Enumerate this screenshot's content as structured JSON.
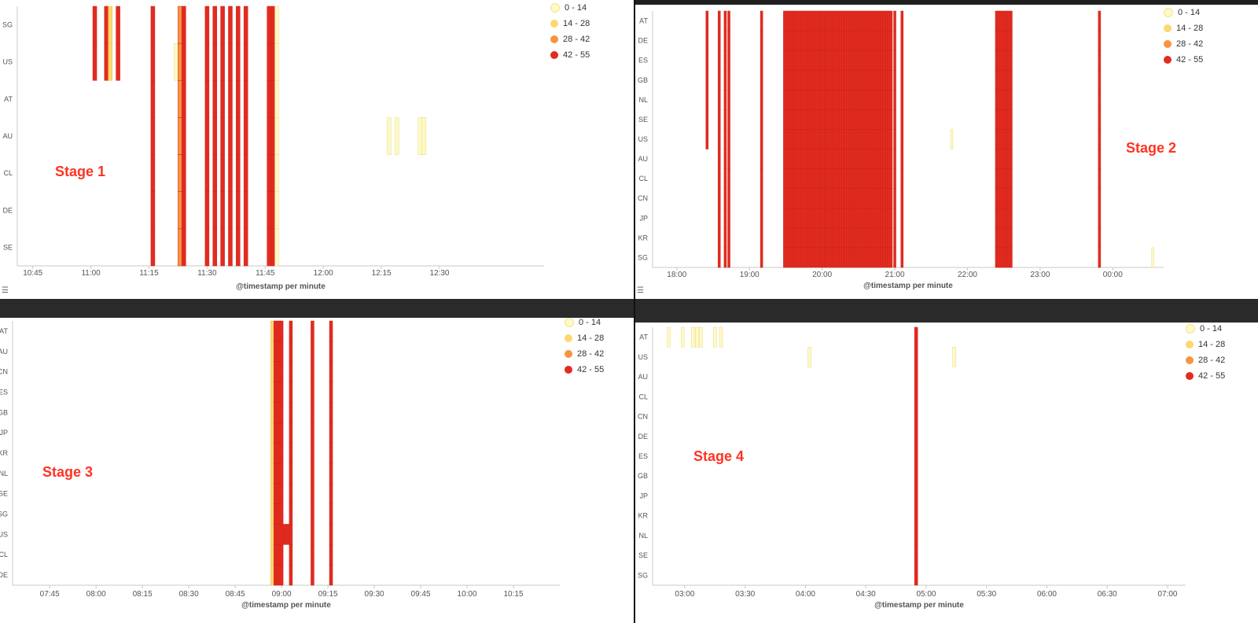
{
  "legend": {
    "entries": [
      {
        "label": "0 - 14",
        "color": "#fff9c4"
      },
      {
        "label": "14 - 28",
        "color": "#fdd870"
      },
      {
        "label": "28 - 42",
        "color": "#f79441"
      },
      {
        "label": "42 - 55",
        "color": "#e32b1f"
      }
    ]
  },
  "chart_data": [
    {
      "type": "heatmap",
      "stage_label": "Stage 1",
      "xlabel": "@timestamp per minute",
      "x_ticks": [
        "10:45",
        "11:00",
        "11:15",
        "11:30",
        "11:45",
        "12:00",
        "12:15",
        "12:30"
      ],
      "x_range": [
        "10:41",
        "12:57"
      ],
      "categories": [
        "SG",
        "US",
        "AT",
        "AU",
        "CL",
        "DE",
        "SE"
      ],
      "columns": [
        {
          "time": "11:01",
          "rows": [
            "SG",
            "US"
          ],
          "bin": "42 - 55"
        },
        {
          "time": "11:04",
          "rows": [
            "SG",
            "US"
          ],
          "bin": "42 - 55"
        },
        {
          "time": "11:05",
          "rows": [
            "SG",
            "US"
          ],
          "bin": "14 - 28"
        },
        {
          "time": "11:07",
          "rows": [
            "SG",
            "US"
          ],
          "bin": "42 - 55"
        },
        {
          "time": "11:16",
          "rows": [
            "SG",
            "US",
            "AT",
            "AU",
            "CL",
            "DE",
            "SE"
          ],
          "bin": "42 - 55"
        },
        {
          "time": "11:22",
          "rows": [
            "US"
          ],
          "bin": "0 - 14"
        },
        {
          "time": "11:23",
          "rows": [
            "SG",
            "US",
            "AT",
            "AU",
            "CL",
            "DE",
            "SE"
          ],
          "bin": "28 - 42"
        },
        {
          "time": "11:24",
          "rows": [
            "SG",
            "US",
            "AT",
            "AU",
            "CL",
            "DE",
            "SE"
          ],
          "bin": "42 - 55"
        },
        {
          "time": "11:30",
          "rows": [
            "SG",
            "US",
            "AT",
            "AU",
            "CL",
            "DE",
            "SE"
          ],
          "bin": "42 - 55"
        },
        {
          "time": "11:32",
          "rows": [
            "SG",
            "US",
            "AT",
            "AU",
            "CL",
            "DE",
            "SE"
          ],
          "bin": "42 - 55"
        },
        {
          "time": "11:34",
          "rows": [
            "SG",
            "US",
            "AT",
            "AU",
            "CL",
            "DE",
            "SE"
          ],
          "bin": "42 - 55"
        },
        {
          "time": "11:36",
          "rows": [
            "SG",
            "US",
            "AT",
            "AU",
            "CL",
            "DE",
            "SE"
          ],
          "bin": "42 - 55"
        },
        {
          "time": "11:38",
          "rows": [
            "SG",
            "US",
            "AT",
            "AU",
            "CL",
            "DE",
            "SE"
          ],
          "bin": "42 - 55"
        },
        {
          "time": "11:40",
          "rows": [
            "SG",
            "US",
            "AT",
            "AU",
            "CL",
            "DE",
            "SE"
          ],
          "bin": "42 - 55"
        },
        {
          "time": "11:46",
          "rows": [
            "SG",
            "US",
            "AT",
            "AU",
            "CL",
            "DE",
            "SE"
          ],
          "bin": "42 - 55"
        },
        {
          "time": "11:47",
          "rows": [
            "SG",
            "US",
            "AT",
            "AU",
            "CL",
            "DE",
            "SE"
          ],
          "bin": "42 - 55"
        },
        {
          "time": "11:48",
          "rows": [
            "SG",
            "US",
            "AT",
            "AU",
            "CL",
            "DE",
            "SE"
          ],
          "bin": "0 - 14"
        },
        {
          "time": "12:17",
          "rows": [
            "AU"
          ],
          "bin": "0 - 14"
        },
        {
          "time": "12:19",
          "rows": [
            "AU"
          ],
          "bin": "0 - 14"
        },
        {
          "time": "12:25",
          "rows": [
            "AU"
          ],
          "bin": "0 - 14"
        },
        {
          "time": "12:26",
          "rows": [
            "AU"
          ],
          "bin": "0 - 14"
        }
      ]
    },
    {
      "type": "heatmap",
      "stage_label": "Stage 2",
      "xlabel": "@timestamp per minute",
      "x_ticks": [
        "18:00",
        "19:00",
        "20:00",
        "21:00",
        "22:00",
        "23:00",
        "00:00"
      ],
      "x_range": [
        "17:40",
        "00:42"
      ],
      "categories": [
        "AT",
        "DE",
        "ES",
        "GB",
        "NL",
        "SE",
        "US",
        "AU",
        "CL",
        "CN",
        "JP",
        "KR",
        "SG"
      ],
      "column_groups": [
        {
          "times": [
            "18:25"
          ],
          "rows": [
            "AT",
            "DE",
            "ES",
            "GB",
            "NL",
            "SE",
            "US"
          ],
          "bin": "42 - 55"
        },
        {
          "times": [
            "18:35",
            "18:40",
            "18:43"
          ],
          "rows": "all",
          "bin": "42 - 55"
        },
        {
          "times": [
            "19:10"
          ],
          "rows": "all",
          "bin": "42 - 55"
        },
        {
          "times": [
            "19:29",
            "19:31",
            "19:33",
            "19:35",
            "19:37",
            "19:39",
            "19:41",
            "19:43",
            "19:45",
            "19:47",
            "19:49",
            "19:51",
            "19:53",
            "19:55",
            "19:57",
            "19:59",
            "20:01",
            "20:03",
            "20:05",
            "20:07",
            "20:09",
            "20:11",
            "20:13",
            "20:15",
            "20:17",
            "20:19",
            "20:21",
            "20:23",
            "20:25",
            "20:27",
            "20:29",
            "20:31",
            "20:33",
            "20:35",
            "20:37",
            "20:39",
            "20:41",
            "20:43",
            "20:45",
            "20:47",
            "20:49",
            "20:51",
            "20:53",
            "20:55",
            "20:57"
          ],
          "rows": "all",
          "bin": "42 - 55"
        },
        {
          "times": [
            "21:00",
            "21:06"
          ],
          "rows": "all",
          "bin": "42 - 55"
        },
        {
          "times": [
            "21:47"
          ],
          "rows": [
            "US"
          ],
          "bin": "0 - 14"
        },
        {
          "times": [
            "22:24",
            "22:26",
            "22:28",
            "22:30",
            "22:32",
            "22:34",
            "22:36"
          ],
          "rows": "all",
          "bin": "42 - 55"
        },
        {
          "times": [
            "23:49"
          ],
          "rows": "all",
          "bin": "42 - 55"
        },
        {
          "times": [
            "00:33"
          ],
          "rows": [
            "SG"
          ],
          "bin": "0 - 14"
        }
      ]
    },
    {
      "type": "heatmap",
      "stage_label": "Stage 3",
      "xlabel": "@timestamp per minute",
      "x_ticks": [
        "07:45",
        "08:00",
        "08:15",
        "08:30",
        "08:45",
        "09:00",
        "09:15",
        "09:30",
        "09:45",
        "10:00",
        "10:15"
      ],
      "x_range": [
        "07:33",
        "10:30"
      ],
      "categories": [
        "AT",
        "AU",
        "CN",
        "ES",
        "GB",
        "JP",
        "KR",
        "NL",
        "SE",
        "SG",
        "US",
        "CL",
        "DE"
      ],
      "columns": [
        {
          "time": "08:57",
          "rows": "all",
          "bin": "14 - 28"
        },
        {
          "time": "08:58",
          "rows": "all",
          "bin": "42 - 55"
        },
        {
          "time": "08:59",
          "rows": "all",
          "bin": "42 - 55"
        },
        {
          "time": "09:00",
          "rows": "all",
          "bin": "42 - 55"
        },
        {
          "time": "09:01",
          "rows": [
            "US"
          ],
          "bin": "42 - 55"
        },
        {
          "time": "09:02",
          "rows": [
            "US"
          ],
          "bin": "42 - 55"
        },
        {
          "time": "09:03",
          "rows": "all",
          "bin": "42 - 55"
        },
        {
          "time": "09:10",
          "rows": "all",
          "bin": "42 - 55"
        },
        {
          "time": "09:16",
          "rows": "all",
          "bin": "42 - 55"
        }
      ]
    },
    {
      "type": "heatmap",
      "stage_label": "Stage 4",
      "xlabel": "@timestamp per minute",
      "x_ticks": [
        "03:00",
        "03:30",
        "04:00",
        "04:30",
        "05:00",
        "05:30",
        "06:00",
        "06:30",
        "07:00"
      ],
      "x_range": [
        "02:44",
        "07:09"
      ],
      "categories": [
        "AT",
        "US",
        "AU",
        "CL",
        "CN",
        "DE",
        "ES",
        "GB",
        "JP",
        "KR",
        "NL",
        "SE",
        "SG"
      ],
      "columns": [
        {
          "time": "02:52",
          "rows": [
            "AT"
          ],
          "bin": "0 - 14"
        },
        {
          "time": "02:59",
          "rows": [
            "AT"
          ],
          "bin": "0 - 14"
        },
        {
          "time": "03:04",
          "rows": [
            "AT"
          ],
          "bin": "0 - 14"
        },
        {
          "time": "03:06",
          "rows": [
            "AT"
          ],
          "bin": "0 - 14"
        },
        {
          "time": "03:08",
          "rows": [
            "AT"
          ],
          "bin": "0 - 14"
        },
        {
          "time": "03:15",
          "rows": [
            "AT"
          ],
          "bin": "0 - 14"
        },
        {
          "time": "03:18",
          "rows": [
            "AT"
          ],
          "bin": "0 - 14"
        },
        {
          "time": "04:02",
          "rows": [
            "US"
          ],
          "bin": "0 - 14"
        },
        {
          "time": "04:55",
          "rows": "all",
          "bin": "42 - 55"
        },
        {
          "time": "05:14",
          "rows": [
            "US"
          ],
          "bin": "0 - 14"
        }
      ]
    }
  ]
}
